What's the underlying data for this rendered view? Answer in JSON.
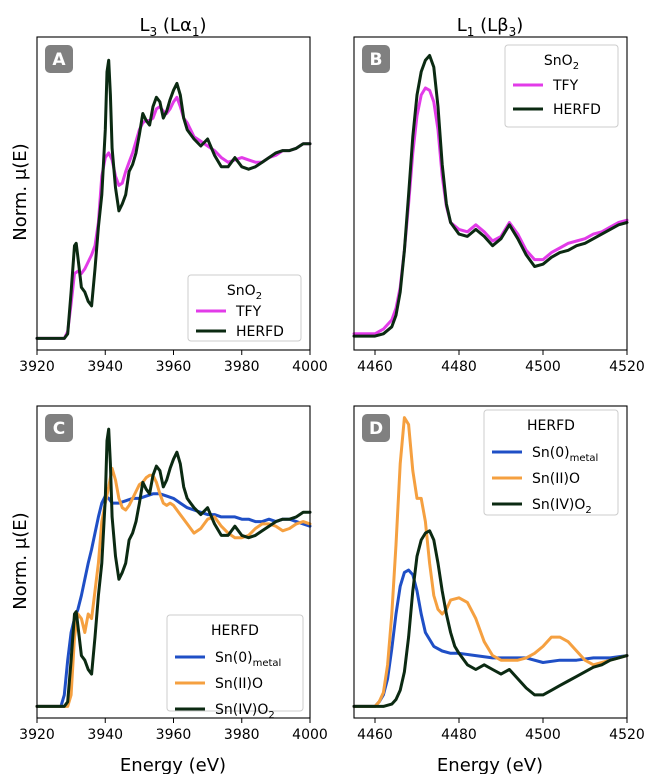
{
  "column_titles": [
    "L",
    "L"
  ],
  "chart_data": [
    {
      "panel": "A",
      "type": "line",
      "title": "",
      "xlabel": "",
      "ylabel": "Norm. μ(E)",
      "xlim": [
        3920,
        4000
      ],
      "ylim": [
        -0.05,
        1.3
      ],
      "xticks": [
        "3920",
        "3940",
        "3960",
        "3980",
        "4000"
      ],
      "legend": {
        "title": "SnO",
        "placement": "lower-right"
      },
      "series": [
        {
          "name": "TFY",
          "color": "#e23be8",
          "x": [
            3920,
            3928,
            3929,
            3930,
            3931,
            3932,
            3933,
            3934,
            3935,
            3936,
            3937,
            3938,
            3939,
            3940,
            3941,
            3942,
            3943,
            3944,
            3945,
            3946,
            3947,
            3948,
            3949,
            3950,
            3951,
            3952,
            3953,
            3954,
            3955,
            3956,
            3957,
            3958,
            3959,
            3960,
            3961,
            3962,
            3963,
            3964,
            3965,
            3966,
            3968,
            3970,
            3972,
            3974,
            3976,
            3978,
            3980,
            3982,
            3984,
            3986,
            3988,
            3990,
            3992,
            3994,
            3996,
            3998,
            4000
          ],
          "y": [
            0.0,
            0.0,
            0.03,
            0.15,
            0.28,
            0.29,
            0.28,
            0.3,
            0.33,
            0.36,
            0.4,
            0.5,
            0.7,
            0.78,
            0.8,
            0.77,
            0.7,
            0.66,
            0.67,
            0.72,
            0.76,
            0.8,
            0.85,
            0.9,
            0.93,
            0.94,
            0.94,
            0.95,
            0.99,
            1.0,
            0.98,
            0.97,
            0.99,
            1.02,
            1.04,
            1.0,
            0.95,
            0.93,
            0.9,
            0.87,
            0.85,
            0.83,
            0.81,
            0.78,
            0.76,
            0.77,
            0.78,
            0.77,
            0.76,
            0.76,
            0.78,
            0.79,
            0.81,
            0.81,
            0.82,
            0.84,
            0.84
          ]
        },
        {
          "name": "HERFD",
          "color": "#0b2a12",
          "x": [
            3920,
            3928,
            3929,
            3930,
            3931,
            3931.5,
            3932,
            3933,
            3934,
            3935,
            3936,
            3937,
            3938,
            3939,
            3940,
            3940.5,
            3941,
            3941.5,
            3942,
            3943,
            3944,
            3945,
            3946,
            3947,
            3948,
            3949,
            3950,
            3951,
            3952,
            3953,
            3954,
            3955,
            3956,
            3957,
            3958,
            3959,
            3960,
            3961,
            3962,
            3963,
            3964,
            3965,
            3966,
            3968,
            3970,
            3972,
            3974,
            3976,
            3978,
            3980,
            3982,
            3984,
            3986,
            3988,
            3990,
            3992,
            3994,
            3996,
            3998,
            4000
          ],
          "y": [
            0.0,
            0.0,
            0.02,
            0.2,
            0.4,
            0.41,
            0.35,
            0.22,
            0.2,
            0.16,
            0.14,
            0.3,
            0.48,
            0.62,
            0.9,
            1.15,
            1.2,
            1.05,
            0.82,
            0.65,
            0.55,
            0.58,
            0.62,
            0.72,
            0.75,
            0.8,
            0.88,
            0.97,
            0.94,
            0.92,
            1.0,
            1.04,
            1.02,
            0.95,
            0.98,
            1.03,
            1.07,
            1.1,
            1.05,
            0.95,
            0.9,
            0.88,
            0.86,
            0.83,
            0.86,
            0.79,
            0.74,
            0.74,
            0.78,
            0.74,
            0.73,
            0.74,
            0.76,
            0.78,
            0.8,
            0.81,
            0.81,
            0.82,
            0.84,
            0.84
          ]
        }
      ]
    },
    {
      "panel": "B",
      "type": "line",
      "title": "",
      "xlabel": "",
      "ylabel": "",
      "xlim": [
        4455,
        4520
      ],
      "ylim": [
        -0.05,
        1.3
      ],
      "xticks": [
        "4460",
        "4480",
        "4500",
        "4520"
      ],
      "legend": {
        "title": "SnO",
        "placement": "upper-right"
      },
      "series": [
        {
          "name": "TFY",
          "color": "#e23be8",
          "x": [
            4455,
            4460,
            4462,
            4464,
            4465,
            4466,
            4467,
            4468,
            4469,
            4470,
            4471,
            4472,
            4473,
            4474,
            4475,
            4476,
            4477,
            4478,
            4480,
            4482,
            4484,
            4486,
            4488,
            4490,
            4492,
            4494,
            4496,
            4498,
            4500,
            4502,
            4504,
            4506,
            4508,
            4510,
            4512,
            4514,
            4516,
            4518,
            4520
          ],
          "y": [
            0.02,
            0.02,
            0.04,
            0.08,
            0.13,
            0.22,
            0.38,
            0.58,
            0.8,
            0.96,
            1.05,
            1.08,
            1.07,
            1.02,
            0.9,
            0.7,
            0.57,
            0.5,
            0.47,
            0.46,
            0.49,
            0.46,
            0.42,
            0.44,
            0.5,
            0.45,
            0.38,
            0.34,
            0.34,
            0.37,
            0.39,
            0.41,
            0.42,
            0.43,
            0.45,
            0.46,
            0.48,
            0.5,
            0.51
          ]
        },
        {
          "name": "HERFD",
          "color": "#0b2a12",
          "x": [
            4455,
            4460,
            4462,
            4464,
            4465,
            4466,
            4467,
            4468,
            4469,
            4470,
            4471,
            4472,
            4473,
            4474,
            4475,
            4476,
            4477,
            4478,
            4480,
            4482,
            4484,
            4486,
            4488,
            4490,
            4492,
            4494,
            4496,
            4498,
            4500,
            4502,
            4504,
            4506,
            4508,
            4510,
            4512,
            4514,
            4516,
            4518,
            4520
          ],
          "y": [
            0.01,
            0.01,
            0.02,
            0.05,
            0.1,
            0.2,
            0.38,
            0.62,
            0.87,
            1.05,
            1.15,
            1.2,
            1.22,
            1.17,
            1.0,
            0.75,
            0.58,
            0.5,
            0.45,
            0.44,
            0.47,
            0.44,
            0.4,
            0.43,
            0.49,
            0.43,
            0.36,
            0.31,
            0.32,
            0.35,
            0.37,
            0.38,
            0.4,
            0.41,
            0.43,
            0.45,
            0.47,
            0.49,
            0.5
          ]
        }
      ]
    },
    {
      "panel": "C",
      "type": "line",
      "title": "",
      "xlabel": "Energy (eV)",
      "ylabel": "Norm. μ(E)",
      "xlim": [
        3920,
        4000
      ],
      "ylim": [
        -0.05,
        1.3
      ],
      "xticks": [
        "3920",
        "3940",
        "3960",
        "3980",
        "4000"
      ],
      "legend": {
        "title": "HERFD",
        "placement": "lower-right"
      },
      "series": [
        {
          "name": "Sn(0)",
          "subscript": "metal",
          "color": "#1f4fc6",
          "x": [
            3920,
            3927,
            3928,
            3929,
            3930,
            3931,
            3932,
            3933,
            3934,
            3935,
            3936,
            3937,
            3938,
            3939,
            3940,
            3941,
            3942,
            3944,
            3946,
            3948,
            3950,
            3952,
            3954,
            3956,
            3958,
            3960,
            3962,
            3964,
            3966,
            3968,
            3970,
            3972,
            3974,
            3976,
            3978,
            3980,
            3982,
            3984,
            3986,
            3988,
            3990,
            3992,
            3994,
            3996,
            3998,
            4000
          ],
          "y": [
            0.0,
            0.0,
            0.05,
            0.2,
            0.32,
            0.38,
            0.42,
            0.48,
            0.55,
            0.62,
            0.68,
            0.75,
            0.82,
            0.88,
            0.91,
            0.9,
            0.88,
            0.88,
            0.89,
            0.9,
            0.9,
            0.91,
            0.92,
            0.92,
            0.91,
            0.9,
            0.88,
            0.86,
            0.85,
            0.84,
            0.83,
            0.83,
            0.82,
            0.82,
            0.82,
            0.81,
            0.81,
            0.8,
            0.8,
            0.81,
            0.8,
            0.81,
            0.81,
            0.8,
            0.79,
            0.78
          ]
        },
        {
          "name": "Sn(II)O",
          "color": "#f5a040",
          "x": [
            3920,
            3929,
            3930,
            3931,
            3932,
            3933,
            3934,
            3935,
            3936,
            3937,
            3938,
            3939,
            3940,
            3941,
            3942,
            3943,
            3944,
            3945,
            3946,
            3947,
            3948,
            3949,
            3950,
            3951,
            3952,
            3953,
            3954,
            3955,
            3956,
            3957,
            3958,
            3959,
            3960,
            3962,
            3964,
            3966,
            3968,
            3970,
            3972,
            3974,
            3976,
            3978,
            3980,
            3982,
            3984,
            3986,
            3988,
            3990,
            3992,
            3994,
            3996,
            3998,
            4000
          ],
          "y": [
            0.0,
            0.0,
            0.05,
            0.3,
            0.4,
            0.38,
            0.32,
            0.4,
            0.38,
            0.5,
            0.62,
            0.8,
            0.88,
            0.95,
            1.03,
            0.98,
            0.9,
            0.86,
            0.85,
            0.87,
            0.9,
            0.93,
            0.96,
            0.97,
            0.99,
            1.0,
            1.0,
            0.97,
            0.92,
            0.88,
            0.87,
            0.88,
            0.87,
            0.83,
            0.79,
            0.75,
            0.77,
            0.81,
            0.82,
            0.78,
            0.75,
            0.73,
            0.73,
            0.74,
            0.77,
            0.79,
            0.79,
            0.78,
            0.76,
            0.77,
            0.79,
            0.8,
            0.79
          ]
        },
        {
          "name": "Sn(IV)O",
          "subscript": "2",
          "color": "#0b2a12",
          "x": [
            3920,
            3928,
            3929,
            3930,
            3931,
            3931.5,
            3932,
            3933,
            3934,
            3935,
            3936,
            3937,
            3938,
            3939,
            3940,
            3940.5,
            3941,
            3941.5,
            3942,
            3943,
            3944,
            3945,
            3946,
            3947,
            3948,
            3949,
            3950,
            3951,
            3952,
            3953,
            3954,
            3955,
            3956,
            3957,
            3958,
            3959,
            3960,
            3961,
            3962,
            3963,
            3964,
            3965,
            3966,
            3968,
            3970,
            3972,
            3974,
            3976,
            3978,
            3980,
            3982,
            3984,
            3986,
            3988,
            3990,
            3992,
            3994,
            3996,
            3998,
            4000
          ],
          "y": [
            0.0,
            0.0,
            0.02,
            0.2,
            0.4,
            0.41,
            0.35,
            0.22,
            0.2,
            0.16,
            0.14,
            0.3,
            0.48,
            0.62,
            0.9,
            1.15,
            1.2,
            1.05,
            0.82,
            0.65,
            0.55,
            0.58,
            0.62,
            0.72,
            0.75,
            0.8,
            0.88,
            0.97,
            0.94,
            0.92,
            1.0,
            1.04,
            1.02,
            0.95,
            0.98,
            1.03,
            1.07,
            1.1,
            1.05,
            0.95,
            0.9,
            0.88,
            0.86,
            0.83,
            0.86,
            0.79,
            0.74,
            0.74,
            0.78,
            0.74,
            0.73,
            0.74,
            0.76,
            0.78,
            0.8,
            0.81,
            0.81,
            0.82,
            0.84,
            0.84
          ]
        }
      ]
    },
    {
      "panel": "D",
      "type": "line",
      "title": "",
      "xlabel": "Energy (eV)",
      "ylabel": "",
      "xlim": [
        4455,
        4520
      ],
      "ylim": [
        -0.05,
        1.3
      ],
      "xticks": [
        "4460",
        "4480",
        "4500",
        "4520"
      ],
      "legend": {
        "title": "HERFD",
        "placement": "upper-right"
      },
      "series": [
        {
          "name": "Sn(0)",
          "subscript": "metal",
          "color": "#1f4fc6",
          "x": [
            4455,
            4460,
            4461,
            4462,
            4463,
            4464,
            4465,
            4466,
            4467,
            4468,
            4469,
            4470,
            4471,
            4472,
            4474,
            4476,
            4478,
            4480,
            4484,
            4488,
            4492,
            4496,
            4500,
            4504,
            4508,
            4512,
            4516,
            4520
          ],
          "y": [
            0.0,
            0.0,
            0.02,
            0.05,
            0.12,
            0.25,
            0.4,
            0.52,
            0.58,
            0.59,
            0.57,
            0.5,
            0.4,
            0.32,
            0.26,
            0.24,
            0.23,
            0.23,
            0.22,
            0.21,
            0.21,
            0.21,
            0.19,
            0.2,
            0.2,
            0.21,
            0.21,
            0.22
          ]
        },
        {
          "name": "Sn(II)O",
          "color": "#f5a040",
          "x": [
            4455,
            4460,
            4461,
            4462,
            4463,
            4464,
            4465,
            4466,
            4467,
            4468,
            4469,
            4470,
            4471,
            4472,
            4473,
            4474,
            4475,
            4476,
            4477,
            4478,
            4480,
            4482,
            4484,
            4486,
            4488,
            4490,
            4492,
            4494,
            4496,
            4498,
            4500,
            4502,
            4504,
            4506,
            4508,
            4510,
            4512,
            4516,
            4520
          ],
          "y": [
            0.0,
            0.0,
            0.02,
            0.06,
            0.18,
            0.4,
            0.7,
            1.05,
            1.25,
            1.22,
            1.02,
            0.9,
            0.9,
            0.8,
            0.62,
            0.48,
            0.42,
            0.4,
            0.42,
            0.46,
            0.47,
            0.45,
            0.38,
            0.28,
            0.22,
            0.2,
            0.2,
            0.2,
            0.21,
            0.23,
            0.26,
            0.3,
            0.3,
            0.28,
            0.24,
            0.2,
            0.18,
            0.2,
            0.22
          ]
        },
        {
          "name": "Sn(IV)O",
          "subscript": "2",
          "color": "#0b2a12",
          "x": [
            4455,
            4462,
            4464,
            4465,
            4466,
            4467,
            4468,
            4469,
            4470,
            4471,
            4472,
            4473,
            4474,
            4475,
            4476,
            4477,
            4478,
            4479,
            4480,
            4482,
            4484,
            4486,
            4488,
            4490,
            4492,
            4494,
            4496,
            4498,
            4500,
            4502,
            4504,
            4506,
            4508,
            4510,
            4512,
            4514,
            4516,
            4518,
            4520
          ],
          "y": [
            0.0,
            0.0,
            0.01,
            0.03,
            0.07,
            0.15,
            0.3,
            0.5,
            0.65,
            0.72,
            0.75,
            0.76,
            0.72,
            0.62,
            0.5,
            0.4,
            0.32,
            0.26,
            0.23,
            0.18,
            0.16,
            0.18,
            0.16,
            0.14,
            0.16,
            0.12,
            0.08,
            0.05,
            0.05,
            0.07,
            0.09,
            0.11,
            0.13,
            0.15,
            0.17,
            0.18,
            0.2,
            0.21,
            0.22
          ]
        }
      ]
    }
  ]
}
